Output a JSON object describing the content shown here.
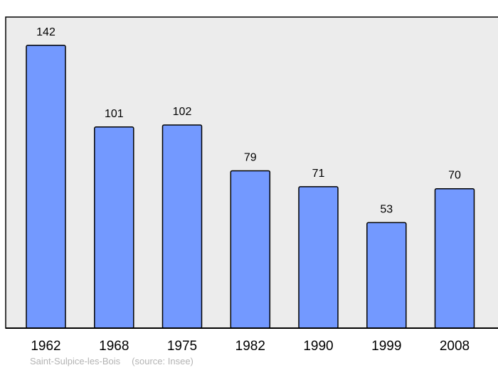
{
  "chart_data": {
    "type": "bar",
    "categories": [
      "1962",
      "1968",
      "1975",
      "1982",
      "1990",
      "1999",
      "2008"
    ],
    "values": [
      142,
      101,
      102,
      79,
      71,
      53,
      70
    ],
    "ylim": [
      0,
      160
    ],
    "grid": false,
    "colors": {
      "bar": "#7399ff",
      "plot_background": "#ececec",
      "outline": "#000000"
    }
  },
  "footer": {
    "place": "Saint-Sulpice-les-Bois",
    "source": "(source: Insee)"
  }
}
